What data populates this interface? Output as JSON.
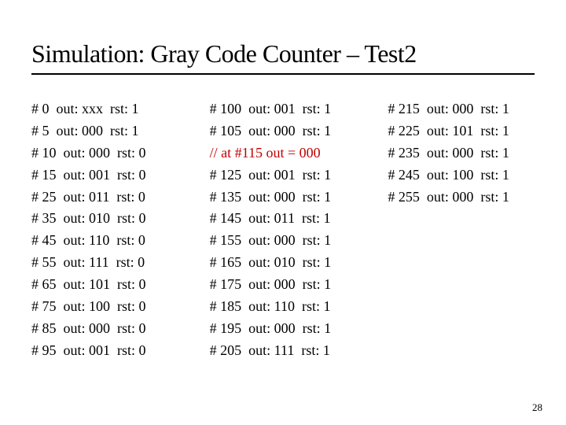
{
  "title": "Simulation: Gray Code Counter – Test2",
  "page_number": "28",
  "columns": [
    {
      "rows": [
        {
          "type": "data",
          "time": "0",
          "out": "xxx",
          "rst": "1"
        },
        {
          "type": "data",
          "time": "5",
          "out": "000",
          "rst": "1"
        },
        {
          "type": "data",
          "time": "10",
          "out": "000",
          "rst": "0"
        },
        {
          "type": "data",
          "time": "15",
          "out": "001",
          "rst": "0"
        },
        {
          "type": "data",
          "time": "25",
          "out": "011",
          "rst": "0"
        },
        {
          "type": "data",
          "time": "35",
          "out": "010",
          "rst": "0"
        },
        {
          "type": "data",
          "time": "45",
          "out": "110",
          "rst": "0"
        },
        {
          "type": "data",
          "time": "55",
          "out": "111",
          "rst": "0"
        },
        {
          "type": "data",
          "time": "65",
          "out": "101",
          "rst": "0"
        },
        {
          "type": "data",
          "time": "75",
          "out": "100",
          "rst": "0"
        },
        {
          "type": "data",
          "time": "85",
          "out": "000",
          "rst": "0"
        },
        {
          "type": "data",
          "time": "95",
          "out": "001",
          "rst": "0"
        }
      ]
    },
    {
      "rows": [
        {
          "type": "data",
          "time": "100",
          "out": "001",
          "rst": "1"
        },
        {
          "type": "data",
          "time": "105",
          "out": "000",
          "rst": "1"
        },
        {
          "type": "comment",
          "text": "// at #115 out = 000"
        },
        {
          "type": "data",
          "time": "125",
          "out": "001",
          "rst": "1"
        },
        {
          "type": "data",
          "time": "135",
          "out": "000",
          "rst": "1"
        },
        {
          "type": "data",
          "time": "145",
          "out": "011",
          "rst": "1"
        },
        {
          "type": "data",
          "time": "155",
          "out": "000",
          "rst": "1"
        },
        {
          "type": "data",
          "time": "165",
          "out": "010",
          "rst": "1"
        },
        {
          "type": "data",
          "time": "175",
          "out": "000",
          "rst": "1"
        },
        {
          "type": "data",
          "time": "185",
          "out": "110",
          "rst": "1"
        },
        {
          "type": "data",
          "time": "195",
          "out": "000",
          "rst": "1"
        },
        {
          "type": "data",
          "time": "205",
          "out": "111",
          "rst": "1"
        }
      ]
    },
    {
      "rows": [
        {
          "type": "data",
          "time": "215",
          "out": "000",
          "rst": "1"
        },
        {
          "type": "data",
          "time": "225",
          "out": "101",
          "rst": "1"
        },
        {
          "type": "data",
          "time": "235",
          "out": "000",
          "rst": "1"
        },
        {
          "type": "data",
          "time": "245",
          "out": "100",
          "rst": "1"
        },
        {
          "type": "data",
          "time": "255",
          "out": "000",
          "rst": "1"
        }
      ]
    }
  ]
}
